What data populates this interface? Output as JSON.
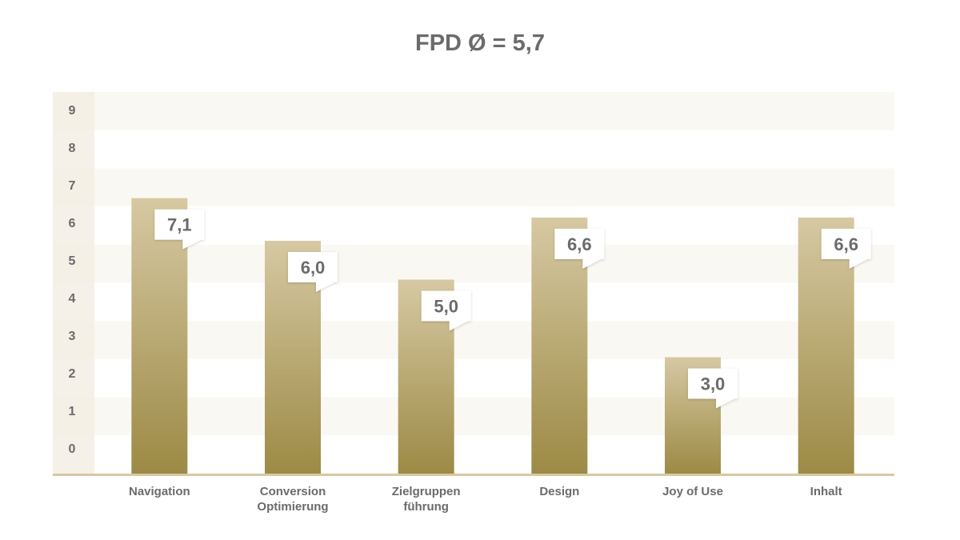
{
  "chart_data": {
    "type": "bar",
    "title": "FPD Ø = 5,7",
    "categories": [
      [
        "Navigation"
      ],
      [
        "Conversion",
        "Optimierung"
      ],
      [
        "Zielgruppen",
        "führung"
      ],
      [
        "Design"
      ],
      [
        "Joy of Use"
      ],
      [
        "Inhalt"
      ]
    ],
    "values": [
      7.1,
      6.0,
      5.0,
      6.6,
      3.0,
      6.6
    ],
    "value_labels": [
      "7,1",
      "6,0",
      "5,0",
      "6,6",
      "3,0",
      "6,6"
    ],
    "yticks": [
      "0",
      "1",
      "2",
      "3",
      "4",
      "5",
      "6",
      "7",
      "8",
      "9"
    ],
    "ylim": [
      0,
      10
    ],
    "xlabel": "",
    "ylabel": "",
    "grid": "alternating horizontal bands",
    "colors": {
      "bar_top": "#d6c9a3",
      "bar_bottom": "#9c8a45",
      "band": "#faf8f2",
      "axis_col": "#f3efe4",
      "baseline": "#d6c9a3",
      "text": "#6b6b6b"
    }
  }
}
